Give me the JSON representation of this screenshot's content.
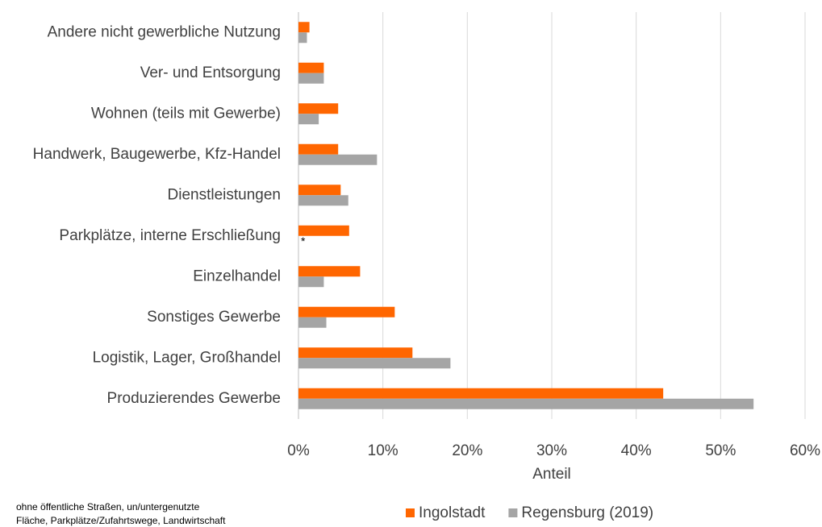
{
  "chart_data": {
    "type": "hbar",
    "categories": [
      "Andere nicht gewerbliche Nutzung",
      "Ver- und Entsorgung",
      "Wohnen (teils mit Gewerbe)",
      "Handwerk, Baugewerbe, Kfz-Handel",
      "Dienstleistungen",
      "Parkplätze, interne Erschließung",
      "Einzelhandel",
      "Sonstiges Gewerbe",
      "Logistik, Lager, Großhandel",
      "Produzierendes Gewerbe"
    ],
    "series": [
      {
        "name": "Ingolstadt",
        "color": "#ff6600",
        "values": [
          1.3,
          3.0,
          4.7,
          4.7,
          5.0,
          6.0,
          7.3,
          11.4,
          13.5,
          43.2
        ]
      },
      {
        "name": "Regensburg (2019)",
        "color": "#a5a5a5",
        "values": [
          1.0,
          3.0,
          2.4,
          9.3,
          5.9,
          null,
          3.0,
          3.3,
          18.0,
          53.9
        ]
      }
    ],
    "xlim": [
      0,
      60
    ],
    "xticks": [
      {
        "value": 0,
        "label": "0%"
      },
      {
        "value": 10,
        "label": "10%"
      },
      {
        "value": 20,
        "label": "20%"
      },
      {
        "value": 30,
        "label": "30%"
      },
      {
        "value": 40,
        "label": "40%"
      },
      {
        "value": 50,
        "label": "50%"
      },
      {
        "value": 60,
        "label": "60%"
      }
    ],
    "x_label": "Anteil",
    "annotation": "*",
    "footnote": [
      "ohne öffentliche Straßen, un/untergenutzte",
      "Fläche, Parkplätze/Zufahrtswege, Landwirtschaft"
    ],
    "grid": true,
    "legend": "bottom"
  }
}
